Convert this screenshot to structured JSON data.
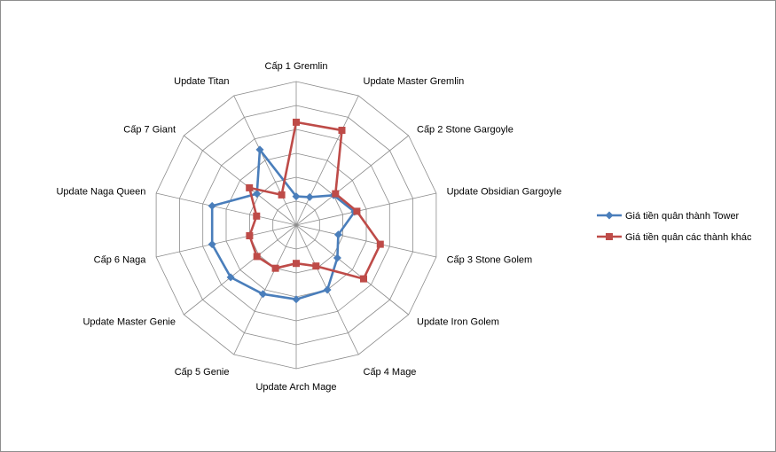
{
  "chart_data": {
    "type": "radar",
    "categories": [
      "Cấp 1 Gremlin",
      "Update Master Gremlin",
      "Cấp 2 Stone Gargoyle",
      "Update Obsidian Gargoyle",
      "Cấp 3 Stone Golem",
      "Update Iron Golem",
      "Cấp 4 Mage",
      "Update Arch Mage",
      "Cấp 5 Genie",
      "Update Master Genie",
      "Cấp 6 Naga",
      "Update Naga Queen",
      "Cấp 7 Giant",
      "Update Titan"
    ],
    "rlim": [
      0,
      6
    ],
    "rings": 6,
    "series": [
      {
        "name": "Giá tiền quân thành Tower",
        "color": "#4a7ebb",
        "marker": "diamond",
        "values": [
          1.2,
          1.3,
          2.0,
          2.5,
          1.8,
          2.2,
          3.0,
          3.1,
          3.2,
          3.5,
          3.6,
          3.6,
          2.1,
          3.5
        ]
      },
      {
        "name": "Giá tiền quân các thành khác",
        "color": "#be4b48",
        "marker": "square",
        "values": [
          4.3,
          4.4,
          2.1,
          2.6,
          3.6,
          3.6,
          1.9,
          1.6,
          2.0,
          2.1,
          2.0,
          1.7,
          2.5,
          1.4
        ]
      }
    ],
    "legend": "right"
  }
}
